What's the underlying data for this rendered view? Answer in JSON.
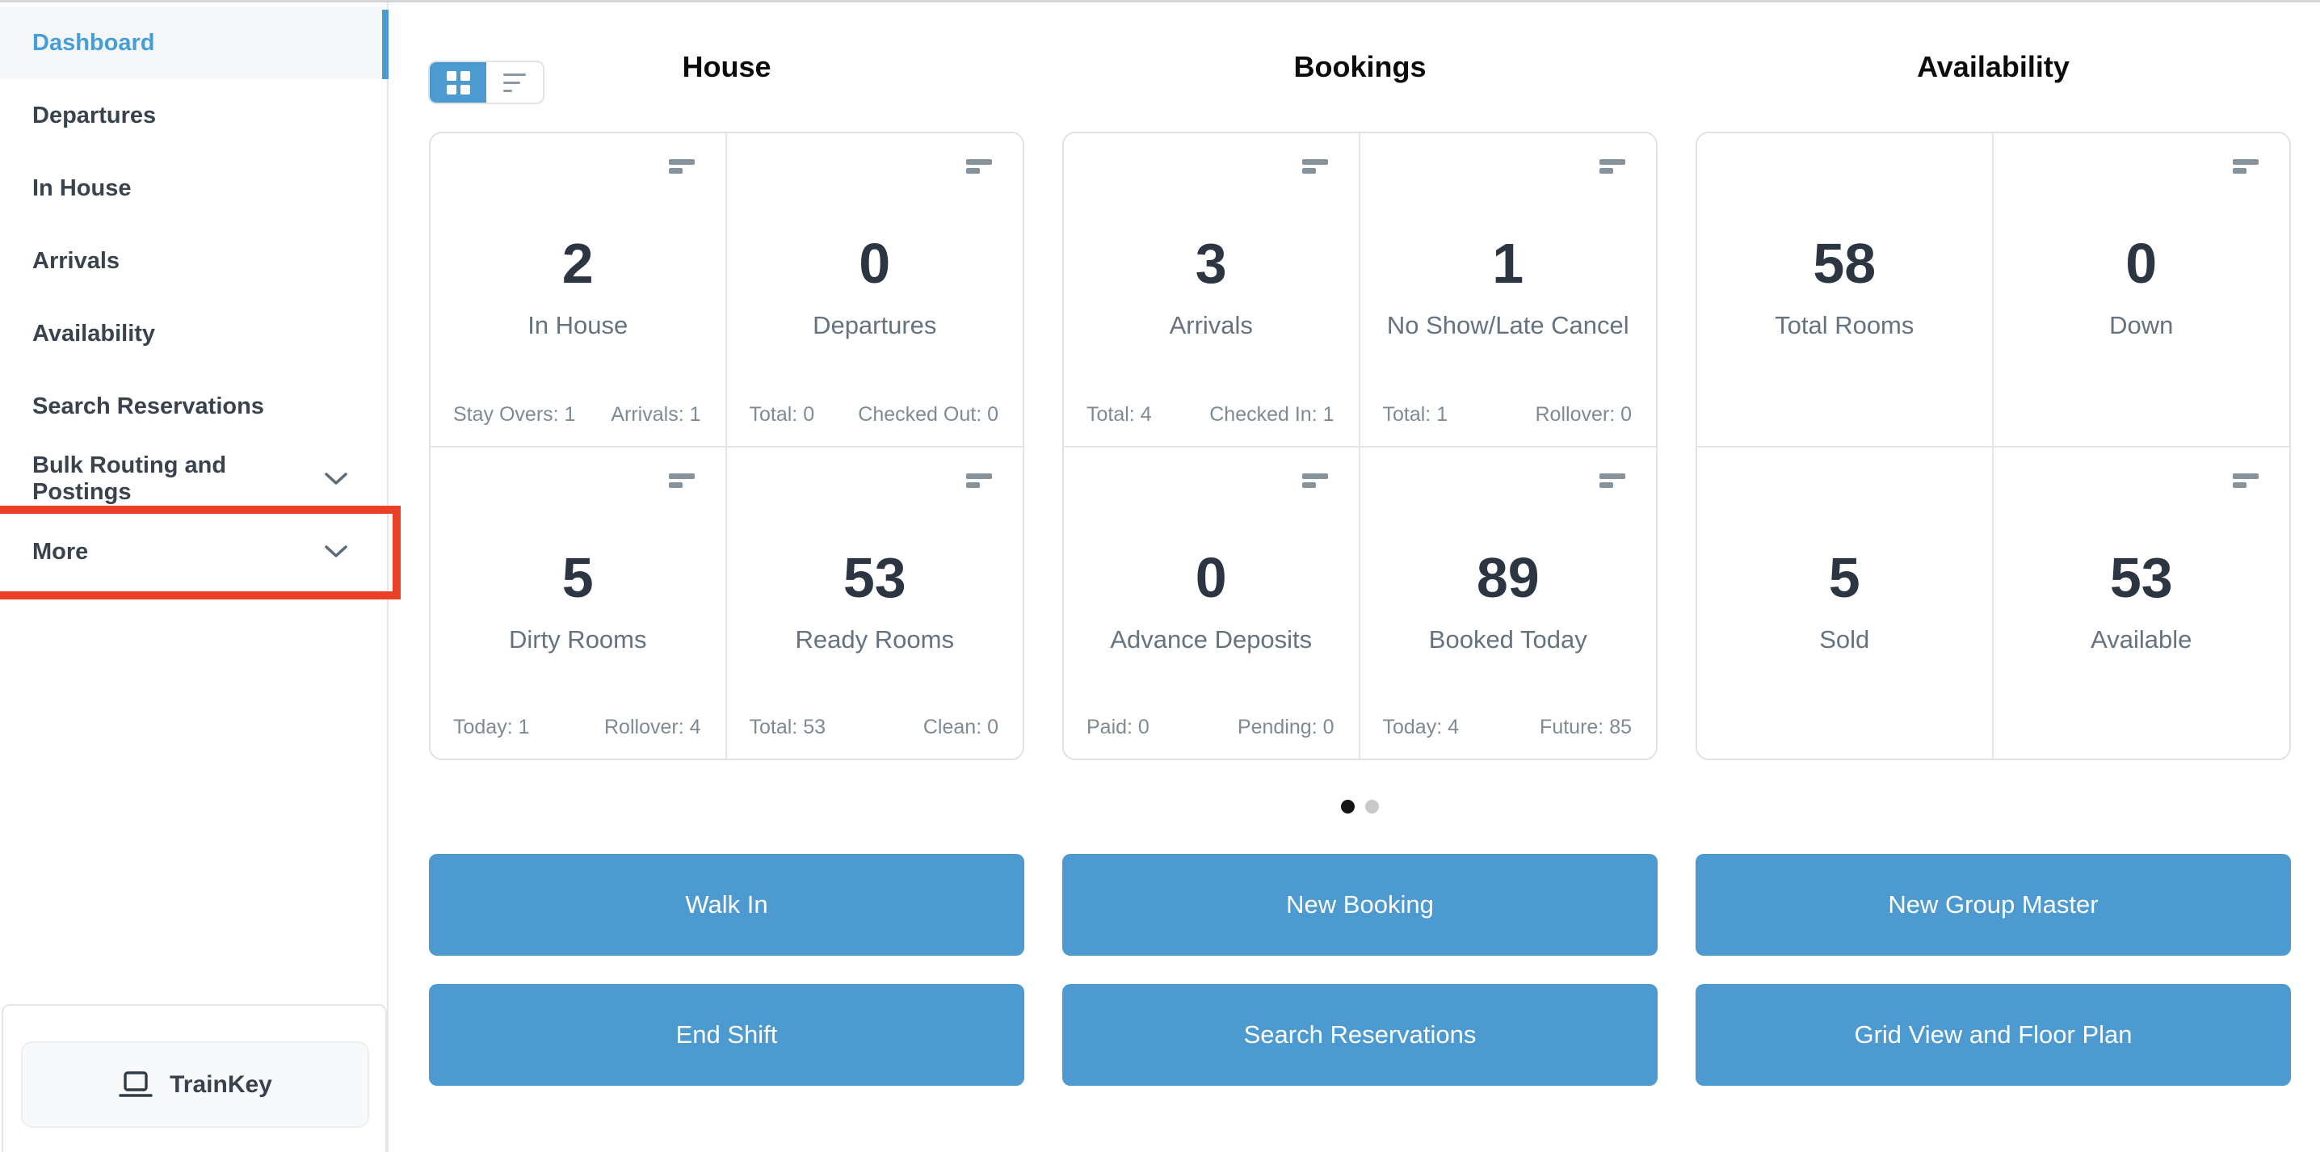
{
  "sidebar": {
    "items": [
      {
        "label": "Dashboard",
        "active": true
      },
      {
        "label": "Departures"
      },
      {
        "label": "In House"
      },
      {
        "label": "Arrivals"
      },
      {
        "label": "Availability"
      },
      {
        "label": "Search Reservations"
      },
      {
        "label": "Bulk Routing and Postings",
        "chevron": true
      },
      {
        "label": "More",
        "chevron": true,
        "annotated": true
      }
    ],
    "trainkey_label": "TrainKey"
  },
  "view_toggle": {
    "active": "grid"
  },
  "columns": [
    {
      "title": "House",
      "cards": [
        {
          "value": "2",
          "label": "In House",
          "menu_icon": true,
          "stats": {
            "left": "Stay Overs: 1",
            "right": "Arrivals: 1"
          }
        },
        {
          "value": "0",
          "label": "Departures",
          "menu_icon": true,
          "stats": {
            "left": "Total: 0",
            "right": "Checked Out: 0"
          }
        },
        {
          "value": "5",
          "label": "Dirty Rooms",
          "menu_icon": true,
          "stats": {
            "left": "Today: 1",
            "right": "Rollover: 4"
          }
        },
        {
          "value": "53",
          "label": "Ready Rooms",
          "menu_icon": true,
          "stats": {
            "left": "Total: 53",
            "right": "Clean: 0"
          }
        }
      ]
    },
    {
      "title": "Bookings",
      "cards": [
        {
          "value": "3",
          "label": "Arrivals",
          "menu_icon": true,
          "stats": {
            "left": "Total: 4",
            "right": "Checked In: 1"
          }
        },
        {
          "value": "1",
          "label": "No Show/Late Cancel",
          "menu_icon": true,
          "stats": {
            "left": "Total: 1",
            "right": "Rollover: 0"
          }
        },
        {
          "value": "0",
          "label": "Advance Deposits",
          "menu_icon": true,
          "stats": {
            "left": "Paid: 0",
            "right": "Pending: 0"
          }
        },
        {
          "value": "89",
          "label": "Booked Today",
          "menu_icon": true,
          "stats": {
            "left": "Today: 4",
            "right": "Future: 85"
          }
        }
      ]
    },
    {
      "title": "Availability",
      "cards": [
        {
          "value": "58",
          "label": "Total Rooms",
          "menu_icon": false
        },
        {
          "value": "0",
          "label": "Down",
          "menu_icon": true
        },
        {
          "value": "5",
          "label": "Sold",
          "menu_icon": false
        },
        {
          "value": "53",
          "label": "Available",
          "menu_icon": true
        }
      ]
    }
  ],
  "pagination": {
    "count": 2,
    "active": 0
  },
  "action_buttons": [
    [
      "Walk In",
      "New Booking",
      "New Group Master"
    ],
    [
      "End Shift",
      "Search Reservations",
      "Grid View and Floor Plan"
    ]
  ],
  "colors": {
    "brand_blue": "#4d9ad0",
    "active_link_blue": "#459ed6",
    "annotation_red": "#e84127",
    "value_text": "#2b3642",
    "label_text": "#64737f",
    "stat_text": "#7f8a93",
    "card_border": "#dfe3e7",
    "dot_active": "#141414",
    "dot_inactive": "#c9c9c9"
  }
}
